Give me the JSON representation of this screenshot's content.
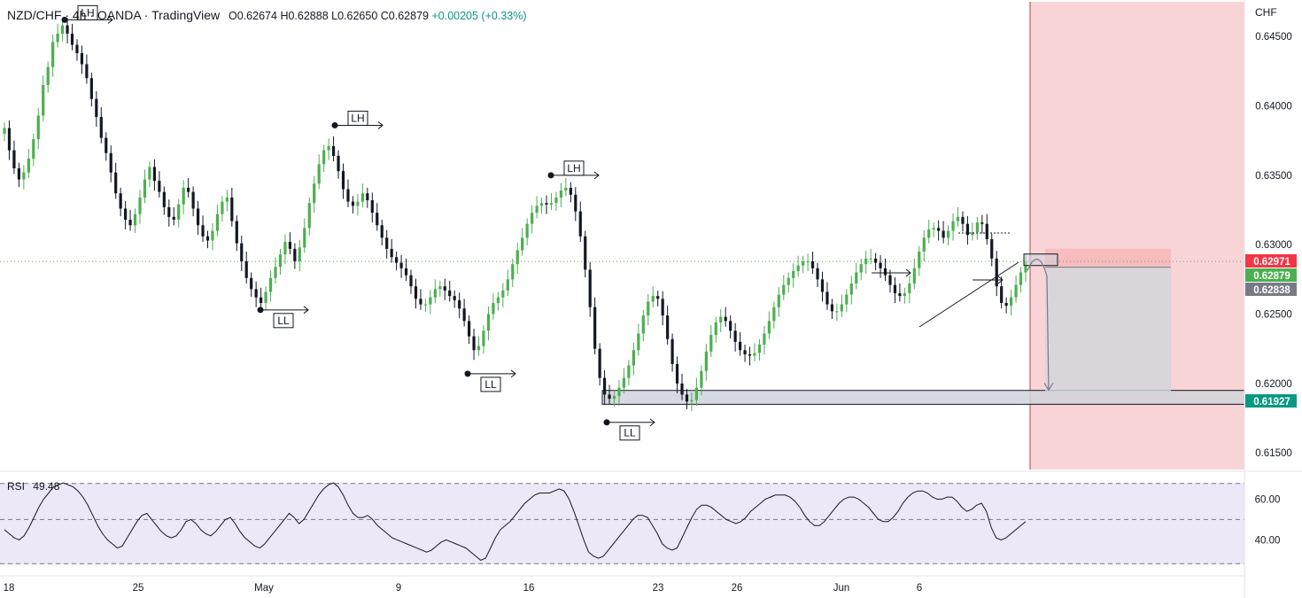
{
  "header": {
    "symbol": "NZD/CHF · 4h · OANDA · TradingView",
    "open": "O0.62674",
    "high": "H0.62888",
    "low": "L0.62650",
    "close": "C0.62879",
    "change": "+0.00205 (+0.33%)"
  },
  "rsi": {
    "label": "RSI",
    "value": "49.48"
  },
  "colors": {
    "up": "#4caf50",
    "down": "#131722",
    "stop_zone": "#f9d4d6",
    "target_zone": "#d1d4dc",
    "support_zone": "#d1d4dc",
    "rsi_band": "#ede8f8",
    "price_tag_stop": "#f23645",
    "price_tag_current": "#4caf50",
    "price_tag_entry": "#787b86",
    "price_tag_target": "#089981"
  },
  "chart_data": [
    {
      "type": "candlestick",
      "currency": "CHF",
      "y_ticks": [
        "0.64500",
        "0.64000",
        "0.63500",
        "0.63000",
        "0.62500",
        "0.62000",
        "0.61500"
      ],
      "ylim": [
        0.6138,
        0.6475
      ],
      "x_ticks": [
        "18",
        "25",
        "May",
        "9",
        "16",
        "23",
        "26",
        "Jun",
        "6"
      ],
      "price_tags": [
        {
          "label": "0.62971",
          "value": 0.62971,
          "role": "stop"
        },
        {
          "label": "0.62879",
          "value": 0.62879,
          "role": "current"
        },
        {
          "label": "0.62838",
          "value": 0.62838,
          "role": "entry"
        },
        {
          "label": "0.61927",
          "value": 0.61927,
          "role": "target"
        }
      ],
      "swing_labels": [
        {
          "text": "LH",
          "value": 0.6462
        },
        {
          "text": "LL",
          "value": 0.6253
        },
        {
          "text": "LH",
          "value": 0.6386
        },
        {
          "text": "LL",
          "value": 0.6207
        },
        {
          "text": "LH",
          "value": 0.635
        },
        {
          "text": "LL",
          "value": 0.6172
        }
      ],
      "support_zone": [
        0.6185,
        0.6195
      ],
      "closes": [
        0.6384,
        0.6368,
        0.6355,
        0.6347,
        0.6352,
        0.6362,
        0.6376,
        0.6393,
        0.6415,
        0.6428,
        0.6446,
        0.6452,
        0.6458,
        0.6452,
        0.6444,
        0.6438,
        0.643,
        0.642,
        0.6405,
        0.6392,
        0.6377,
        0.6366,
        0.6352,
        0.6337,
        0.6326,
        0.6318,
        0.6314,
        0.6322,
        0.6334,
        0.6347,
        0.6356,
        0.6346,
        0.6338,
        0.6327,
        0.632,
        0.6318,
        0.6329,
        0.6341,
        0.6338,
        0.6326,
        0.6314,
        0.6306,
        0.6303,
        0.631,
        0.6322,
        0.6331,
        0.6334,
        0.6317,
        0.6301,
        0.6288,
        0.6276,
        0.6268,
        0.6262,
        0.6258,
        0.6266,
        0.6276,
        0.6284,
        0.6293,
        0.6302,
        0.6297,
        0.6288,
        0.6298,
        0.6312,
        0.633,
        0.6344,
        0.6358,
        0.6368,
        0.6371,
        0.6364,
        0.6353,
        0.634,
        0.6331,
        0.6328,
        0.6331,
        0.6337,
        0.6332,
        0.6323,
        0.6314,
        0.6305,
        0.6297,
        0.6291,
        0.6287,
        0.6283,
        0.6278,
        0.627,
        0.6261,
        0.6257,
        0.6257,
        0.6262,
        0.6268,
        0.627,
        0.6267,
        0.6263,
        0.626,
        0.6254,
        0.6245,
        0.6234,
        0.6224,
        0.6227,
        0.6238,
        0.625,
        0.6258,
        0.6262,
        0.6267,
        0.6275,
        0.6286,
        0.6296,
        0.6305,
        0.6315,
        0.6323,
        0.6328,
        0.633,
        0.6329,
        0.633,
        0.6334,
        0.6339,
        0.6341,
        0.6336,
        0.6324,
        0.6306,
        0.6282,
        0.6255,
        0.6225,
        0.6204,
        0.6192,
        0.6189,
        0.6191,
        0.6197,
        0.6204,
        0.6213,
        0.6224,
        0.6236,
        0.6249,
        0.6259,
        0.6263,
        0.6261,
        0.6249,
        0.6232,
        0.6214,
        0.62,
        0.6192,
        0.6187,
        0.6188,
        0.6197,
        0.6209,
        0.6223,
        0.6235,
        0.6244,
        0.6248,
        0.6245,
        0.6238,
        0.623,
        0.6224,
        0.6221,
        0.622,
        0.6222,
        0.6228,
        0.6236,
        0.6245,
        0.6255,
        0.6264,
        0.6271,
        0.6276,
        0.6281,
        0.6285,
        0.6288,
        0.6288,
        0.6283,
        0.6275,
        0.6266,
        0.6257,
        0.6252,
        0.6252,
        0.6257,
        0.6264,
        0.6272,
        0.628,
        0.6286,
        0.629,
        0.629,
        0.6287,
        0.6283,
        0.6278,
        0.6271,
        0.6265,
        0.6263,
        0.6265,
        0.6272,
        0.6283,
        0.6295,
        0.6305,
        0.6311,
        0.6312,
        0.631,
        0.6305,
        0.631,
        0.6317,
        0.632,
        0.6315,
        0.6307,
        0.6309,
        0.6316,
        0.6315,
        0.6304,
        0.629,
        0.627,
        0.6258,
        0.6256,
        0.6262,
        0.6271,
        0.628,
        0.6288
      ]
    },
    {
      "type": "line",
      "name": "RSI",
      "y_ticks": [
        "60.00",
        "40.00"
      ],
      "ylim": [
        28,
        68
      ],
      "band": [
        30,
        70
      ],
      "midline": 50,
      "values": [
        45,
        43,
        41,
        40,
        42,
        46,
        51,
        56,
        60,
        63,
        66,
        67,
        68,
        67,
        66,
        64,
        61,
        57,
        52,
        47,
        43,
        40,
        38,
        36,
        37,
        41,
        45,
        49,
        52,
        53,
        50,
        47,
        44,
        42,
        41,
        42,
        45,
        49,
        50,
        48,
        45,
        43,
        42,
        44,
        47,
        50,
        51,
        48,
        44,
        41,
        39,
        37,
        36,
        38,
        41,
        44,
        47,
        50,
        53,
        51,
        48,
        50,
        54,
        58,
        62,
        65,
        67,
        68,
        66,
        62,
        57,
        53,
        51,
        51,
        52,
        50,
        47,
        45,
        43,
        41,
        40,
        39,
        38,
        37,
        36,
        35,
        34,
        35,
        37,
        39,
        40,
        39,
        38,
        37,
        36,
        34,
        32,
        30,
        31,
        36,
        41,
        45,
        47,
        49,
        52,
        55,
        58,
        60,
        62,
        63,
        63,
        63,
        64,
        65,
        64,
        60,
        54,
        47,
        40,
        34,
        32,
        31,
        32,
        35,
        38,
        41,
        44,
        47,
        50,
        52,
        52,
        51,
        47,
        43,
        38,
        36,
        35,
        36,
        41,
        46,
        51,
        55,
        57,
        57,
        56,
        54,
        52,
        50,
        49,
        48,
        49,
        51,
        54,
        56,
        58,
        60,
        61,
        62,
        62,
        62,
        61,
        59,
        56,
        52,
        49,
        47,
        47,
        49,
        52,
        55,
        58,
        60,
        61,
        61,
        60,
        58,
        56,
        53,
        50,
        49,
        49,
        51,
        54,
        58,
        61,
        63,
        64,
        64,
        63,
        61,
        60,
        60,
        61,
        61,
        59,
        56,
        54,
        55,
        57,
        58,
        54,
        46,
        41,
        40,
        41,
        43,
        45,
        47,
        49
      ]
    }
  ]
}
